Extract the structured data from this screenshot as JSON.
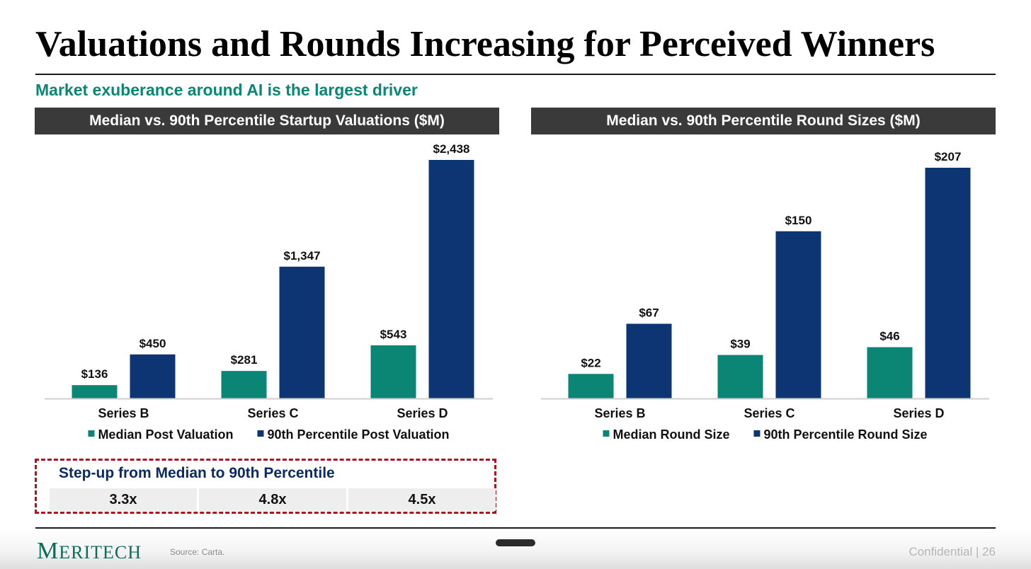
{
  "slide": {
    "title": "Valuations and Rounds Increasing for Perceived Winners",
    "subtitle": "Market exuberance around AI is the largest driver"
  },
  "colors": {
    "median": "#0b8574",
    "p90": "#0d3574",
    "accent": "#0a8774",
    "step_border": "#b0141a",
    "header_bg": "#3a3a3a"
  },
  "chart_data": [
    {
      "type": "bar",
      "title": "Median vs. 90th Percentile Startup Valuations ($M)",
      "categories": [
        "Series B",
        "Series C",
        "Series D"
      ],
      "series": [
        {
          "name": "Median Post Valuation",
          "values": [
            136,
            281,
            543
          ],
          "labels": [
            "$136",
            "$281",
            "$543"
          ]
        },
        {
          "name": "90th Percentile Post Valuation",
          "values": [
            450,
            1347,
            2438
          ],
          "labels": [
            "$450",
            "$1,347",
            "$2,438"
          ]
        }
      ],
      "ylim": [
        0,
        2438
      ],
      "grid": false,
      "legend": "bottom"
    },
    {
      "type": "bar",
      "title": "Median vs. 90th Percentile Round Sizes ($M)",
      "categories": [
        "Series B",
        "Series C",
        "Series D"
      ],
      "series": [
        {
          "name": "Median Round Size",
          "values": [
            22,
            39,
            46
          ],
          "labels": [
            "$22",
            "$39",
            "$46"
          ]
        },
        {
          "name": "90th Percentile Round Size",
          "values": [
            67,
            150,
            207
          ],
          "labels": [
            "$67",
            "$150",
            "$207"
          ]
        }
      ],
      "ylim": [
        0,
        207
      ],
      "grid": false,
      "legend": "bottom"
    }
  ],
  "stepup": {
    "title": "Step-up from Median to 90th Percentile",
    "values": [
      "3.3x",
      "4.8x",
      "4.5x"
    ]
  },
  "footer": {
    "logo_first": "M",
    "logo_rest": "ERITECH",
    "source": "Source: Carta.",
    "confidential": "Confidential | 26"
  }
}
